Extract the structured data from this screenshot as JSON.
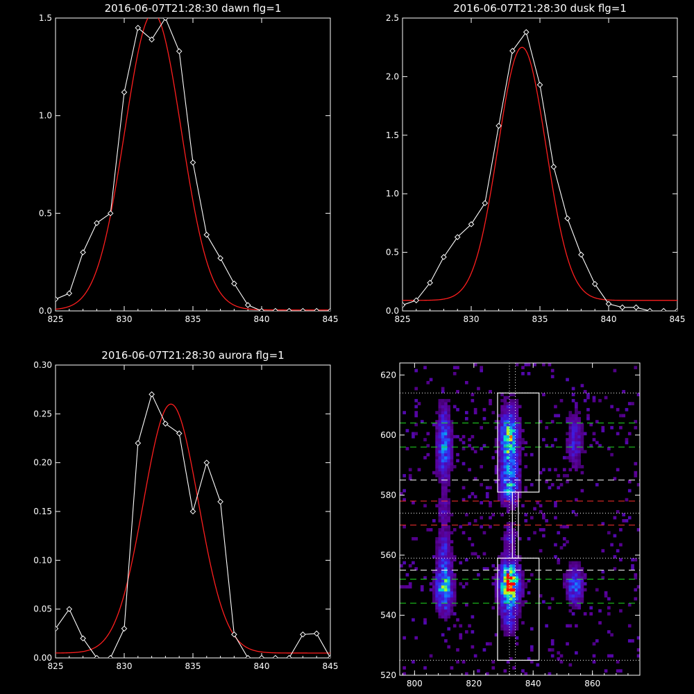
{
  "colors": {
    "background": "#000000",
    "axes": "#ffffff",
    "observed": "#ffffff",
    "fit": "#ff1e1e",
    "green_dash": "#22dd22",
    "red_dash": "#ff3030",
    "white_dash": "#ffffff"
  },
  "chart_data": [
    {
      "id": "dawn",
      "type": "line",
      "title": "2016-06-07T21:28:30 dawn flg=1",
      "xlim": [
        825,
        845
      ],
      "ylim": [
        0,
        1.5
      ],
      "xticks": [
        "825",
        "830",
        "835",
        "840",
        "845"
      ],
      "yticks": [
        "0.0",
        "0.5",
        "1.0",
        "1.5"
      ],
      "series": [
        {
          "kind": "observed",
          "markers": "diamond",
          "x": [
            825,
            826,
            827,
            828,
            829,
            830,
            831,
            832,
            833,
            834,
            835,
            836,
            837,
            838,
            839,
            840,
            841,
            842,
            843,
            844,
            845
          ],
          "y": [
            0.06,
            0.09,
            0.3,
            0.45,
            0.5,
            1.12,
            1.45,
            1.39,
            1.5,
            1.33,
            0.76,
            0.39,
            0.27,
            0.14,
            0.03,
            0.0,
            0.0,
            0.0,
            0.0,
            0.0,
            0.0
          ]
        },
        {
          "kind": "fit",
          "model": "gaussian",
          "amplitude": 1.52,
          "center": 832.1,
          "sigma": 2.05,
          "offset": 0.005
        }
      ]
    },
    {
      "id": "dusk",
      "type": "line",
      "title": "2016-06-07T21:28:30 dusk flg=1",
      "xlim": [
        825,
        845
      ],
      "ylim": [
        0,
        2.5
      ],
      "xticks": [
        "825",
        "830",
        "835",
        "840",
        "845"
      ],
      "yticks": [
        "0.0",
        "0.5",
        "1.0",
        "1.5",
        "2.0",
        "2.5"
      ],
      "series": [
        {
          "kind": "observed",
          "markers": "diamond",
          "x": [
            825,
            826,
            827,
            828,
            829,
            830,
            831,
            832,
            833,
            834,
            835,
            836,
            837,
            838,
            839,
            840,
            841,
            842,
            843,
            844,
            845
          ],
          "y": [
            0.05,
            0.09,
            0.24,
            0.46,
            0.63,
            0.74,
            0.92,
            1.58,
            2.22,
            2.38,
            1.93,
            1.23,
            0.79,
            0.48,
            0.23,
            0.06,
            0.03,
            0.03,
            0.0,
            0.0,
            0.0
          ]
        },
        {
          "kind": "fit",
          "model": "gaussian",
          "amplitude": 2.16,
          "center": 833.7,
          "sigma": 1.75,
          "offset": 0.09
        }
      ]
    },
    {
      "id": "aurora",
      "type": "line",
      "title": "2016-06-07T21:28:30 aurora flg=1",
      "xlim": [
        825,
        845
      ],
      "ylim": [
        0,
        0.3
      ],
      "xticks": [
        "825",
        "830",
        "835",
        "840",
        "845"
      ],
      "yticks": [
        "0.00",
        "0.05",
        "0.10",
        "0.15",
        "0.20",
        "0.25",
        "0.30"
      ],
      "series": [
        {
          "kind": "observed",
          "markers": "diamond",
          "x": [
            825,
            826,
            827,
            828,
            829,
            830,
            831,
            832,
            833,
            834,
            835,
            836,
            837,
            838,
            839,
            840,
            841,
            842,
            843,
            844,
            845
          ],
          "y": [
            0.03,
            0.05,
            0.02,
            0.0,
            0.0,
            0.03,
            0.22,
            0.27,
            0.24,
            0.23,
            0.15,
            0.2,
            0.16,
            0.024,
            0.0,
            0.0,
            0.0,
            0.0,
            0.024,
            0.025,
            0.0
          ]
        },
        {
          "kind": "fit",
          "model": "gaussian",
          "amplitude": 0.255,
          "center": 833.4,
          "sigma": 2.0,
          "offset": 0.005
        }
      ]
    },
    {
      "id": "image",
      "type": "heatmap",
      "title": "",
      "xlim": [
        795,
        876
      ],
      "ylim": [
        520,
        624
      ],
      "xticks": [
        "800",
        "820",
        "840",
        "860"
      ],
      "yticks": [
        "520",
        "540",
        "560",
        "580",
        "600",
        "620"
      ],
      "blobs": [
        {
          "x": 810,
          "y": 597,
          "sx": 1.6,
          "sy": 8,
          "amp": 0.45
        },
        {
          "x": 810,
          "y": 549,
          "sx": 1.8,
          "sy": 5,
          "amp": 0.65
        },
        {
          "x": 810,
          "y": 562,
          "sx": 1.5,
          "sy": 5,
          "amp": 0.25
        },
        {
          "x": 832,
          "y": 598,
          "sx": 2.0,
          "sy": 7,
          "amp": 0.7
        },
        {
          "x": 832,
          "y": 583,
          "sx": 2.0,
          "sy": 4,
          "amp": 0.5
        },
        {
          "x": 832,
          "y": 550,
          "sx": 2.2,
          "sy": 5,
          "amp": 1.0
        },
        {
          "x": 832,
          "y": 538,
          "sx": 1.6,
          "sy": 3,
          "amp": 0.25
        },
        {
          "x": 854,
          "y": 598,
          "sx": 1.8,
          "sy": 6,
          "amp": 0.25
        },
        {
          "x": 854,
          "y": 550,
          "sx": 2.0,
          "sy": 4,
          "amp": 0.4
        },
        {
          "x": 810,
          "y": 575,
          "sx": 1.5,
          "sy": 3,
          "amp": 0.18
        },
        {
          "x": 832,
          "y": 566,
          "sx": 1.5,
          "sy": 3,
          "amp": 0.2
        }
      ],
      "boxes": [
        {
          "x0": 828,
          "x1": 842,
          "y0": 581,
          "y1": 614
        },
        {
          "x0": 828,
          "x1": 842,
          "y0": 525,
          "y1": 559
        },
        {
          "x0": 833,
          "x1": 835,
          "y0": 559,
          "y1": 581
        }
      ],
      "hlines": [
        {
          "y": 614,
          "style": "dotted",
          "color": "white"
        },
        {
          "y": 604,
          "style": "dashed",
          "color": "green"
        },
        {
          "y": 596,
          "style": "dashed",
          "color": "green"
        },
        {
          "y": 585,
          "style": "dashed",
          "color": "white"
        },
        {
          "y": 578,
          "style": "dashed",
          "color": "red"
        },
        {
          "y": 574,
          "style": "dotted",
          "color": "white"
        },
        {
          "y": 570,
          "style": "dashed",
          "color": "red"
        },
        {
          "y": 559,
          "style": "dotted",
          "color": "white"
        },
        {
          "y": 555,
          "style": "dashed",
          "color": "white"
        },
        {
          "y": 552,
          "style": "dashed",
          "color": "green"
        },
        {
          "y": 544,
          "style": "dashed",
          "color": "green"
        },
        {
          "y": 525,
          "style": "dotted",
          "color": "white"
        }
      ],
      "vlines": [
        {
          "x": 832,
          "style": "dotted",
          "color": "white"
        },
        {
          "x": 834,
          "style": "dotted",
          "color": "white"
        }
      ]
    }
  ]
}
